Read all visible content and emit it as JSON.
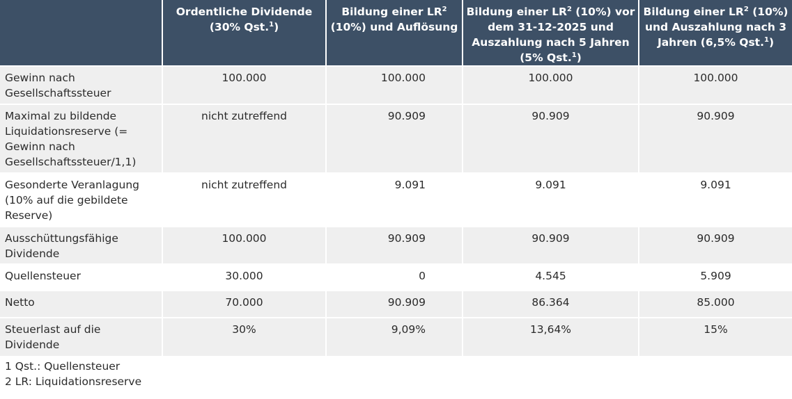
{
  "table": {
    "headers": [
      "",
      {
        "pre": "Ordentliche Dividende (30% Qst.",
        "sup": "1",
        "post": ")"
      },
      {
        "pre": "Bildung einer LR",
        "sup": "2",
        "post": " (10%) und Auflösung"
      },
      {
        "pre": "Bildung einer LR",
        "sup": "2",
        "post": " (10%) vor dem 31-12-2025 und Auszahlung nach 5 Jahren (5% Qst.",
        "sup2": "1",
        "post2": ")"
      },
      {
        "pre": "Bildung einer LR",
        "sup": "2",
        "post": " (10%) und Auszahlung nach 3 Jahren (6,5% Qst.",
        "sup2": "1",
        "post2": ")"
      }
    ],
    "rows": [
      {
        "label": "Gewinn nach Gesellschaftssteuer",
        "values": [
          "100.000",
          "100.000",
          "100.000",
          "100.000"
        ]
      },
      {
        "label": "Maximal zu bildende Liquidationsreserve (= Gewinn nach Gesellschaftssteuer/1,1)",
        "values": [
          "nicht zutreffend",
          "90.909",
          "90.909",
          "90.909"
        ]
      },
      {
        "label": "Gesonderte Veranlagung (10% auf die gebildete Reserve)",
        "values": [
          "nicht zutreffend",
          "9.091",
          "9.091",
          "9.091"
        ]
      },
      {
        "label": "Ausschüttungsfähige Dividende",
        "values": [
          "100.000",
          "90.909",
          "90.909",
          "90.909"
        ]
      },
      {
        "label": "Quellensteuer",
        "values": [
          "30.000",
          "0",
          "4.545",
          "5.909"
        ]
      },
      {
        "label": "Netto",
        "values": [
          "70.000",
          "90.909",
          "86.364",
          "85.000"
        ]
      },
      {
        "label": "Steuerlast auf die Dividende",
        "values": [
          "30%",
          "9,09%",
          "13,64%",
          "15%"
        ]
      }
    ]
  },
  "footnotes": [
    "1 Qst.: Quellensteuer",
    "2 LR: Liquidationsreserve"
  ],
  "colors": {
    "header_bg": "#3d5066",
    "row_gray": "#efefef",
    "row_white": "#ffffff",
    "text": "#2b2b2b"
  }
}
